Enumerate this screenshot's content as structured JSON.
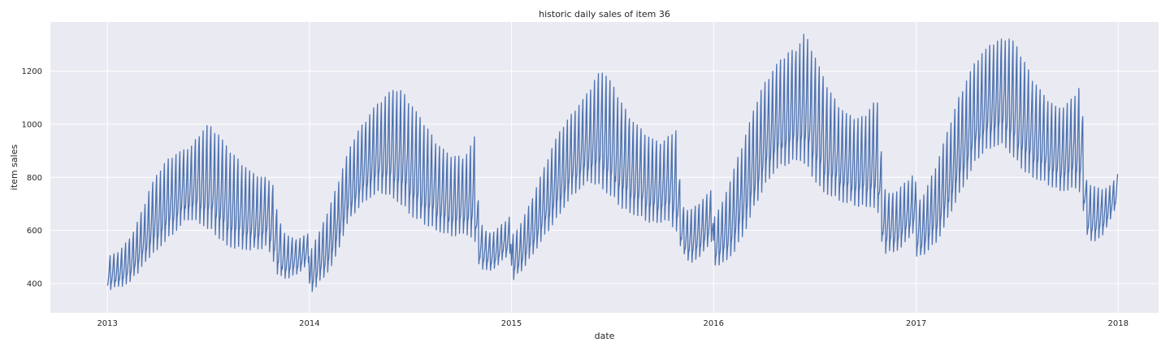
{
  "chart_data": {
    "type": "line",
    "title": "historic daily sales of item 36",
    "xlabel": "date",
    "ylabel": "item sales",
    "xlim": [
      "2012-09-20",
      "2018-03-15"
    ],
    "ylim": [
      290,
      1385
    ],
    "x_ticks": [
      {
        "label": "2013",
        "date": "2013-01-01"
      },
      {
        "label": "2014",
        "date": "2014-01-01"
      },
      {
        "label": "2015",
        "date": "2015-01-01"
      },
      {
        "label": "2016",
        "date": "2016-01-01"
      },
      {
        "label": "2017",
        "date": "2017-01-01"
      },
      {
        "label": "2018",
        "date": "2018-01-01"
      }
    ],
    "y_ticks": [
      400,
      600,
      800,
      1000,
      1200
    ],
    "grid": true,
    "background": "#eaeaf2",
    "grid_color": "#ffffff",
    "series": [
      {
        "color": "#4c72b0",
        "date_range": [
          "2013-01-01",
          "2017-12-31"
        ],
        "weekly_low": [
          [
            370,
            380,
            390,
            390,
            400,
            430,
            440,
            480,
            500,
            520,
            540,
            560,
            580,
            600,
            620,
            640,
            640,
            630,
            620,
            600,
            590,
            570,
            550,
            540,
            530,
            530,
            530,
            520,
            530,
            530,
            540,
            500,
            430,
            420,
            420,
            430,
            440,
            460,
            480
          ],
          [
            360,
            380,
            410,
            430,
            460,
            500,
            560,
            620,
            650,
            680,
            700,
            720,
            730,
            740,
            740,
            730,
            720,
            700,
            680,
            660,
            640,
            630,
            620,
            610,
            600,
            590,
            580,
            580,
            580,
            590,
            580,
            560,
            460,
            450,
            450,
            460,
            480,
            500,
            520
          ],
          [
            400,
            430,
            450,
            480,
            510,
            540,
            570,
            600,
            630,
            660,
            690,
            720,
            740,
            760,
            770,
            780,
            770,
            760,
            740,
            720,
            700,
            680,
            670,
            660,
            650,
            640,
            630,
            630,
            630,
            640,
            620,
            600,
            520,
            490,
            480,
            490,
            520,
            540,
            560
          ],
          [
            470,
            470,
            480,
            500,
            520,
            560,
            600,
            650,
            700,
            740,
            780,
            810,
            830,
            840,
            850,
            860,
            870,
            850,
            820,
            790,
            760,
            740,
            730,
            720,
            710,
            700,
            700,
            690,
            690,
            690,
            690,
            650,
            510,
            520,
            520,
            530,
            550,
            580,
            600
          ],
          [
            500,
            500,
            520,
            540,
            560,
            600,
            640,
            690,
            730,
            770,
            810,
            850,
            880,
            900,
            910,
            920,
            920,
            910,
            880,
            850,
            830,
            810,
            800,
            790,
            780,
            770,
            760,
            750,
            750,
            750,
            760,
            740,
            580,
            560,
            560,
            580,
            620,
            660,
            700
          ]
        ],
        "weekly_high": [
          [
            500,
            510,
            520,
            540,
            570,
            600,
            650,
            700,
            760,
            800,
            830,
            860,
            880,
            890,
            900,
            910,
            920,
            960,
            980,
            1000,
            980,
            960,
            930,
            900,
            880,
            860,
            840,
            820,
            810,
            800,
            800,
            790,
            660,
            600,
            580,
            570,
            570,
            580,
            590
          ],
          [
            520,
            560,
            600,
            650,
            700,
            760,
            820,
            880,
            930,
            970,
            1000,
            1030,
            1060,
            1080,
            1100,
            1120,
            1130,
            1130,
            1110,
            1080,
            1050,
            1020,
            990,
            960,
            930,
            910,
            890,
            880,
            880,
            880,
            900,
            960,
            640,
            600,
            590,
            600,
            620,
            640,
            660
          ],
          [
            580,
            600,
            640,
            680,
            730,
            780,
            830,
            880,
            930,
            970,
            1000,
            1030,
            1060,
            1080,
            1110,
            1140,
            1180,
            1210,
            1180,
            1150,
            1110,
            1070,
            1040,
            1010,
            990,
            970,
            950,
            940,
            930,
            940,
            970,
            980,
            690,
            680,
            680,
            700,
            720,
            740,
            760
          ],
          [
            650,
            680,
            720,
            780,
            840,
            900,
            960,
            1020,
            1080,
            1130,
            1170,
            1200,
            1230,
            1250,
            1270,
            1280,
            1300,
            1340,
            1310,
            1260,
            1210,
            1160,
            1120,
            1090,
            1060,
            1040,
            1030,
            1020,
            1030,
            1050,
            1080,
            1080,
            760,
            740,
            740,
            760,
            780,
            800,
            820
          ],
          [
            700,
            720,
            760,
            810,
            860,
            920,
            980,
            1040,
            1100,
            1150,
            1190,
            1230,
            1260,
            1280,
            1300,
            1310,
            1320,
            1330,
            1320,
            1290,
            1250,
            1210,
            1170,
            1140,
            1110,
            1090,
            1070,
            1060,
            1070,
            1090,
            1120,
            1150,
            790,
            770,
            760,
            760,
            760,
            780,
            820
          ]
        ]
      }
    ]
  }
}
